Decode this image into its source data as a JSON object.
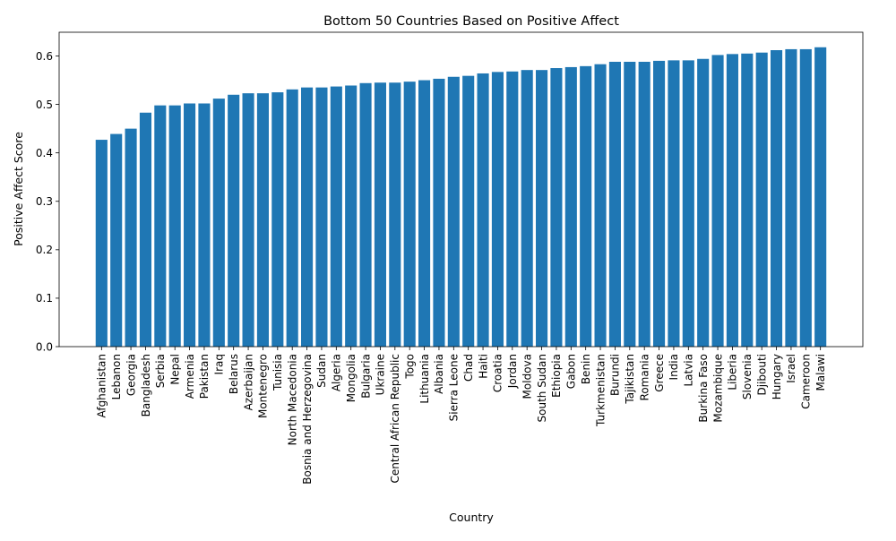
{
  "chart_data": {
    "type": "bar",
    "title": "Bottom 50 Countries Based on Positive Affect",
    "xlabel": "Country",
    "ylabel": "Positive Affect Score",
    "ylim": [
      0,
      0.649
    ],
    "yticks": [
      "0.0",
      "0.1",
      "0.2",
      "0.3",
      "0.4",
      "0.5",
      "0.6"
    ],
    "grid": false,
    "bar_color": "#1f77b4",
    "categories": [
      "Afghanistan",
      "Lebanon",
      "Georgia",
      "Bangladesh",
      "Serbia",
      "Nepal",
      "Armenia",
      "Pakistan",
      "Iraq",
      "Belarus",
      "Azerbaijan",
      "Montenegro",
      "Tunisia",
      "North Macedonia",
      "Bosnia and Herzegovina",
      "Sudan",
      "Algeria",
      "Mongolia",
      "Bulgaria",
      "Ukraine",
      "Central African Republic",
      "Togo",
      "Lithuania",
      "Albania",
      "Sierra Leone",
      "Chad",
      "Haiti",
      "Croatia",
      "Jordan",
      "Moldova",
      "South Sudan",
      "Ethiopia",
      "Gabon",
      "Benin",
      "Turkmenistan",
      "Burundi",
      "Tajikistan",
      "Romania",
      "Greece",
      "India",
      "Latvia",
      "Burkina Faso",
      "Mozambique",
      "Liberia",
      "Slovenia",
      "Djibouti",
      "Hungary",
      "Israel",
      "Cameroon",
      "Malawi"
    ],
    "values": [
      0.427,
      0.439,
      0.45,
      0.483,
      0.498,
      0.498,
      0.502,
      0.502,
      0.512,
      0.52,
      0.523,
      0.523,
      0.525,
      0.531,
      0.535,
      0.535,
      0.537,
      0.539,
      0.544,
      0.545,
      0.545,
      0.547,
      0.55,
      0.553,
      0.557,
      0.559,
      0.564,
      0.567,
      0.568,
      0.571,
      0.571,
      0.575,
      0.577,
      0.579,
      0.583,
      0.588,
      0.588,
      0.588,
      0.59,
      0.591,
      0.591,
      0.594,
      0.602,
      0.604,
      0.605,
      0.607,
      0.612,
      0.614,
      0.614,
      0.618
    ]
  }
}
